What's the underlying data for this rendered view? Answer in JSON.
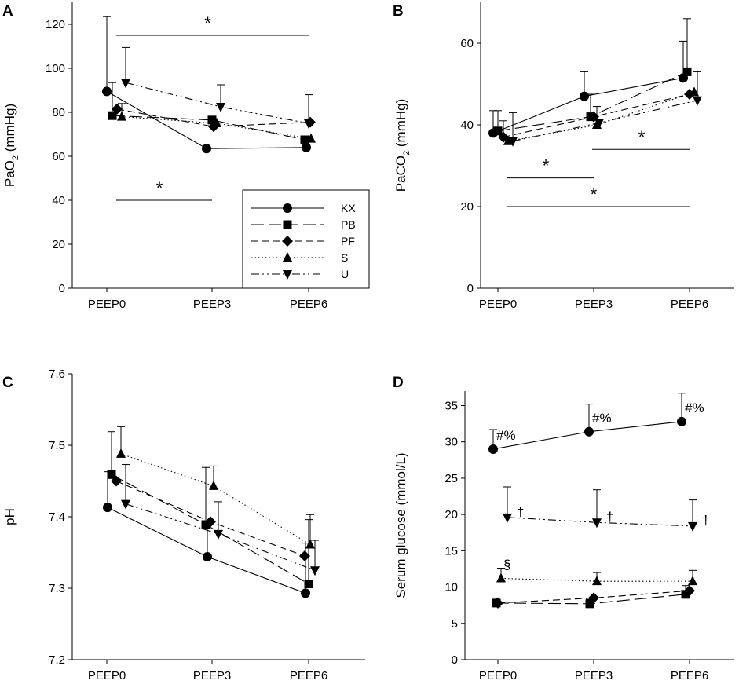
{
  "categories": [
    "PEEP0",
    "PEEP3",
    "PEEP6"
  ],
  "legend": [
    {
      "key": "KX",
      "label": "KX",
      "marker": "circle"
    },
    {
      "key": "PB",
      "label": "PB",
      "marker": "square"
    },
    {
      "key": "PF",
      "label": "PF",
      "marker": "diamond"
    },
    {
      "key": "S",
      "label": "S",
      "marker": "triangle-up"
    },
    {
      "key": "U",
      "label": "U",
      "marker": "triangle-down"
    }
  ],
  "chart_data": [
    {
      "panel": "A",
      "type": "line",
      "ylabel_main": "PaO",
      "ylabel_sub": "2",
      "ylabel_unit": " (mmHg)",
      "ylim": [
        0,
        130
      ],
      "yticks": [
        0,
        20,
        40,
        60,
        80,
        100,
        120
      ],
      "series": [
        {
          "name": "KX",
          "values": [
            89.5,
            63.5,
            64
          ],
          "err": [
            34,
            0,
            0
          ]
        },
        {
          "name": "PB",
          "values": [
            78.5,
            76.5,
            67.5
          ],
          "err": [
            15,
            0,
            0
          ]
        },
        {
          "name": "PF",
          "values": [
            81.5,
            73.5,
            75.5
          ],
          "err": [
            0,
            0,
            0
          ]
        },
        {
          "name": "S",
          "values": [
            78,
            75,
            68
          ],
          "err": [
            6,
            0,
            0
          ]
        },
        {
          "name": "U",
          "values": [
            93.5,
            82.5,
            75
          ],
          "err": [
            16,
            10,
            13
          ]
        }
      ],
      "annotations": [
        {
          "text": "*",
          "x1": 0,
          "x2": 2,
          "y": 115
        },
        {
          "text": "*",
          "x1": 0,
          "x2": 1,
          "y": 40
        }
      ]
    },
    {
      "panel": "B",
      "type": "line",
      "ylabel_main": "PaCO",
      "ylabel_sub": "2",
      "ylabel_unit": " (mmHg)",
      "ylim": [
        0,
        70
      ],
      "yticks": [
        0,
        20,
        40,
        60
      ],
      "series": [
        {
          "name": "KX",
          "values": [
            38,
            47,
            51.5
          ],
          "err": [
            5.5,
            6,
            9
          ]
        },
        {
          "name": "PB",
          "values": [
            38.5,
            42,
            53
          ],
          "err": [
            5,
            5.5,
            13
          ]
        },
        {
          "name": "PF",
          "values": [
            37,
            42,
            47.5
          ],
          "err": [
            4,
            0,
            0
          ]
        },
        {
          "name": "S",
          "values": [
            36,
            40,
            48
          ],
          "err": [
            0,
            4.5,
            0
          ]
        },
        {
          "name": "U",
          "values": [
            36,
            40.5,
            46
          ],
          "err": [
            7,
            0,
            7
          ]
        }
      ],
      "annotations": [
        {
          "text": "*",
          "x1": 1,
          "x2": 2,
          "y": 34
        },
        {
          "text": "*",
          "x1": 0,
          "x2": 1,
          "y": 27
        },
        {
          "text": "*",
          "x1": 0,
          "x2": 2,
          "y": 20
        }
      ]
    },
    {
      "panel": "C",
      "type": "line",
      "ylabel_main": "pH",
      "ylabel_sub": "",
      "ylabel_unit": "",
      "ylim": [
        7.2,
        7.6
      ],
      "yticks": [
        7.2,
        7.3,
        7.4,
        7.5,
        7.6
      ],
      "series": [
        {
          "name": "KX",
          "values": [
            7.413,
            7.344,
            7.293
          ],
          "err": [
            0.05,
            0.045,
            0.07
          ]
        },
        {
          "name": "PB",
          "values": [
            7.459,
            7.389,
            7.306
          ],
          "err": [
            0.06,
            0.08,
            0.09
          ]
        },
        {
          "name": "PF",
          "values": [
            7.45,
            7.393,
            7.345
          ],
          "err": [
            0,
            0,
            0
          ]
        },
        {
          "name": "S",
          "values": [
            7.488,
            7.443,
            7.361
          ],
          "err": [
            0.038,
            0.028,
            0.042
          ]
        },
        {
          "name": "U",
          "values": [
            7.418,
            7.376,
            7.325
          ],
          "err": [
            0.055,
            0.045,
            0.042
          ]
        }
      ],
      "annotations": []
    },
    {
      "panel": "D",
      "type": "line",
      "ylabel_main": "Serum glucose (mmol/L)",
      "ylabel_sub": "",
      "ylabel_unit": "",
      "ylim": [
        0,
        37
      ],
      "yticks": [
        0,
        5,
        10,
        15,
        20,
        25,
        30,
        35
      ],
      "series": [
        {
          "name": "KX",
          "values": [
            29,
            31.4,
            32.8
          ],
          "err": [
            2.7,
            3.8,
            3.9
          ]
        },
        {
          "name": "PB",
          "values": [
            7.8,
            7.7,
            9
          ],
          "err": [
            0.7,
            0.6,
            1.2
          ]
        },
        {
          "name": "PF",
          "values": [
            7.8,
            8.5,
            9.5
          ],
          "err": [
            0,
            0,
            0
          ]
        },
        {
          "name": "S",
          "values": [
            11.2,
            10.8,
            10.8
          ],
          "err": [
            1.4,
            1.2,
            1.5
          ]
        },
        {
          "name": "U",
          "values": [
            19.6,
            18.9,
            18.4
          ],
          "err": [
            4.2,
            4.5,
            3.6
          ]
        }
      ],
      "annotations": [
        {
          "text": "#%",
          "series": "KX",
          "symbol_index": 0
        },
        {
          "text": "#%",
          "series": "KX",
          "symbol_index": 1
        },
        {
          "text": "#%",
          "series": "KX",
          "symbol_index": 2
        },
        {
          "text": "†",
          "series": "U",
          "symbol_index": 0
        },
        {
          "text": "†",
          "series": "U",
          "symbol_index": 1
        },
        {
          "text": "†",
          "series": "U",
          "symbol_index": 2
        },
        {
          "text": "§",
          "series": "S",
          "symbol_index": 0
        }
      ]
    }
  ]
}
